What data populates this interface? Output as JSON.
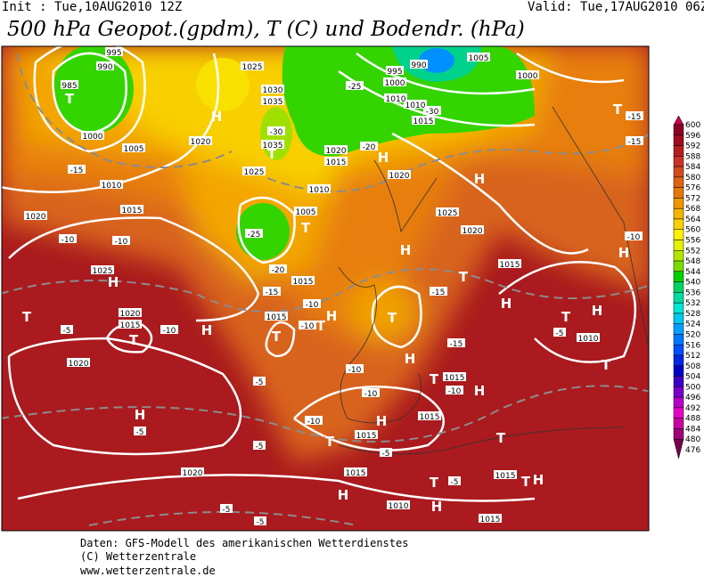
{
  "header": {
    "init": "Init : Tue,10AUG2010 12Z",
    "valid": "Valid: Tue,17AUG2010 06Z",
    "title": "500 hPa Geopot.(gpdm), T (C) und Bodendr. (hPa)"
  },
  "colorbar": {
    "labels": [
      600,
      596,
      592,
      588,
      584,
      580,
      576,
      572,
      568,
      564,
      560,
      556,
      552,
      548,
      544,
      540,
      536,
      532,
      528,
      524,
      520,
      516,
      512,
      508,
      504,
      500,
      496,
      492,
      488,
      484,
      480,
      476
    ],
    "colors": [
      "#c8004b",
      "#8c0023",
      "#a00a1e",
      "#b41e1e",
      "#c83228",
      "#d24b1e",
      "#dc6414",
      "#e6780a",
      "#f09600",
      "#f5b400",
      "#fad200",
      "#fff000",
      "#e6f000",
      "#b4e600",
      "#78dc00",
      "#00d200",
      "#00d264",
      "#00dca0",
      "#00e6d2",
      "#00c8f0",
      "#00a0ff",
      "#0078ff",
      "#0050ff",
      "#0028e6",
      "#0000c8",
      "#3c00c8",
      "#7800c8",
      "#b400c8",
      "#e600c8",
      "#c800a0",
      "#a00078",
      "#780050"
    ]
  },
  "map_labels": [
    "T",
    "985",
    "990",
    "995",
    "1000",
    "H",
    "1025",
    "1030",
    "1035",
    "-30",
    "1035",
    "T",
    "1025",
    "-25",
    "T",
    "1005",
    "1010",
    "-20",
    "-15",
    "1015",
    "990",
    "995",
    "1000",
    "-25",
    "-30",
    "1010",
    "1015",
    "1005",
    "1000",
    "T",
    "-15",
    "-15",
    "1005",
    "1020",
    "-15",
    "1010",
    "1020",
    "1015",
    "-10",
    "-10",
    "1025",
    "H",
    "T",
    "1020",
    "1015",
    "T",
    "-5",
    "-10",
    "H",
    "1020",
    "H",
    "-5",
    "1020",
    "1015",
    "T",
    "-10",
    "-10",
    "T",
    "H",
    "1020",
    "1015",
    "-20",
    "H",
    "1020",
    "H",
    "1025",
    "1020",
    "1015",
    "T",
    "H",
    "-15",
    "H",
    "T",
    "-15",
    "H",
    "-10",
    "-10",
    "1015",
    "H",
    "T",
    "-10",
    "1015",
    "-5",
    "-5",
    "-5",
    "-5",
    "-5",
    "1015",
    "H",
    "1010",
    "T",
    "-5",
    "H",
    "1015",
    "T",
    "H",
    "1015",
    "T",
    "T",
    "1010",
    "H",
    "T",
    "-5",
    "H",
    "-10",
    "1015",
    "-10",
    "T",
    "H",
    "1010"
  ],
  "footer": [
    "Daten: GFS-Modell des amerikanischen Wetterdienstes",
    "(C) Wetterzentrale",
    "www.wetterzentrale.de"
  ]
}
